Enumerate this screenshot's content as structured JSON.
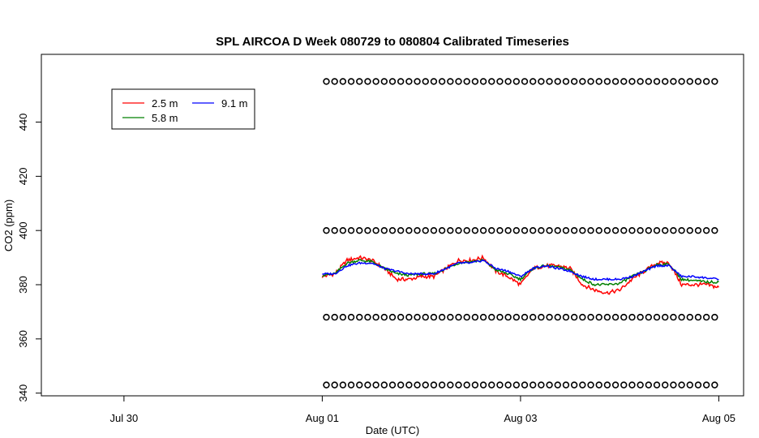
{
  "chart_data": {
    "type": "line",
    "title": "SPL AIRCOA D  Week 080729 to 080804  Calibrated Timeseries",
    "xlabel": "Date (UTC)",
    "ylabel": "CO2 (ppm)",
    "x_start": "2008-07-29",
    "xlim": [
      "2008-07-29T04:00",
      "2008-08-05T06:00"
    ],
    "ylim": [
      339,
      465
    ],
    "x_ticks": [
      {
        "label": "Jul 30",
        "value": "2008-07-30"
      },
      {
        "label": "Aug 01",
        "value": "2008-08-01"
      },
      {
        "label": "Aug 03",
        "value": "2008-08-03"
      },
      {
        "label": "Aug 05",
        "value": "2008-08-05"
      }
    ],
    "y_ticks": [
      340,
      360,
      380,
      400,
      420,
      440
    ],
    "legend": {
      "placement": "top-left",
      "entries": [
        {
          "name": "2.5 m",
          "color": "#ff0000"
        },
        {
          "name": "5.8 m",
          "color": "#008000"
        },
        {
          "name": "9.1 m",
          "color": "#0000ff"
        }
      ]
    },
    "series": [
      {
        "name": "2.5 m",
        "color": "#ff0000",
        "x": [
          "2008-08-01T00:00",
          "2008-08-01T03:00",
          "2008-08-01T06:00",
          "2008-08-01T09:00",
          "2008-08-01T12:00",
          "2008-08-01T15:00",
          "2008-08-01T18:00",
          "2008-08-01T21:00",
          "2008-08-02T00:00",
          "2008-08-02T03:00",
          "2008-08-02T06:00",
          "2008-08-02T09:00",
          "2008-08-02T12:00",
          "2008-08-02T15:00",
          "2008-08-02T18:00",
          "2008-08-02T21:00",
          "2008-08-03T00:00",
          "2008-08-03T03:00",
          "2008-08-03T06:00",
          "2008-08-03T09:00",
          "2008-08-03T12:00",
          "2008-08-03T15:00",
          "2008-08-03T18:00",
          "2008-08-03T21:00",
          "2008-08-04T00:00",
          "2008-08-04T03:00",
          "2008-08-04T06:00",
          "2008-08-04T09:00",
          "2008-08-04T12:00",
          "2008-08-04T15:00",
          "2008-08-04T18:00",
          "2008-08-04T21:00",
          "2008-08-05T00:00"
        ],
        "y": [
          383,
          384,
          389,
          390,
          389,
          386,
          382,
          382,
          383,
          383,
          386,
          389,
          389,
          390,
          385,
          383,
          380,
          386,
          387,
          387,
          386,
          380,
          378,
          377,
          378,
          382,
          385,
          388,
          388,
          380,
          380,
          380,
          379
        ]
      },
      {
        "name": "5.8 m",
        "color": "#008000",
        "x": [
          "2008-08-01T00:00",
          "2008-08-01T03:00",
          "2008-08-01T06:00",
          "2008-08-01T09:00",
          "2008-08-01T12:00",
          "2008-08-01T15:00",
          "2008-08-01T18:00",
          "2008-08-01T21:00",
          "2008-08-02T00:00",
          "2008-08-02T03:00",
          "2008-08-02T06:00",
          "2008-08-02T09:00",
          "2008-08-02T12:00",
          "2008-08-02T15:00",
          "2008-08-02T18:00",
          "2008-08-02T21:00",
          "2008-08-03T00:00",
          "2008-08-03T03:00",
          "2008-08-03T06:00",
          "2008-08-03T09:00",
          "2008-08-03T12:00",
          "2008-08-03T15:00",
          "2008-08-03T18:00",
          "2008-08-03T21:00",
          "2008-08-04T00:00",
          "2008-08-04T03:00",
          "2008-08-04T06:00",
          "2008-08-04T09:00",
          "2008-08-04T12:00",
          "2008-08-04T15:00",
          "2008-08-04T18:00",
          "2008-08-04T21:00",
          "2008-08-05T00:00"
        ],
        "y": [
          383.5,
          384,
          388,
          389,
          388.5,
          386,
          384,
          383.5,
          384,
          384,
          386,
          388,
          388.5,
          389,
          385.5,
          384,
          382,
          386,
          387,
          386.5,
          385.5,
          382,
          380,
          380,
          380.5,
          383,
          385,
          387.5,
          387.5,
          382,
          381.5,
          381,
          381
        ]
      },
      {
        "name": "9.1 m",
        "color": "#0000ff",
        "x": [
          "2008-08-01T00:00",
          "2008-08-01T03:00",
          "2008-08-01T06:00",
          "2008-08-01T09:00",
          "2008-08-01T12:00",
          "2008-08-01T15:00",
          "2008-08-01T18:00",
          "2008-08-01T21:00",
          "2008-08-02T00:00",
          "2008-08-02T03:00",
          "2008-08-02T06:00",
          "2008-08-02T09:00",
          "2008-08-02T12:00",
          "2008-08-02T15:00",
          "2008-08-02T18:00",
          "2008-08-02T21:00",
          "2008-08-03T00:00",
          "2008-08-03T03:00",
          "2008-08-03T06:00",
          "2008-08-03T09:00",
          "2008-08-03T12:00",
          "2008-08-03T15:00",
          "2008-08-03T18:00",
          "2008-08-03T21:00",
          "2008-08-04T00:00",
          "2008-08-04T03:00",
          "2008-08-04T06:00",
          "2008-08-04T09:00",
          "2008-08-04T12:00",
          "2008-08-04T15:00",
          "2008-08-04T18:00",
          "2008-08-04T21:00",
          "2008-08-05T00:00"
        ],
        "y": [
          384,
          384,
          387,
          388,
          388,
          386,
          385,
          384,
          384,
          384,
          386,
          388,
          388,
          389,
          386,
          385,
          383,
          386,
          387,
          386,
          385,
          383,
          382,
          382,
          382,
          383,
          385,
          387,
          387,
          383,
          383,
          382.5,
          382
        ]
      }
    ],
    "calibration_markers": {
      "marker": "open-circle",
      "x_range": [
        "2008-08-01T01:00",
        "2008-08-05T00:00"
      ],
      "interval_hours": 2,
      "levels": [
        455,
        400,
        368,
        343
      ]
    }
  }
}
